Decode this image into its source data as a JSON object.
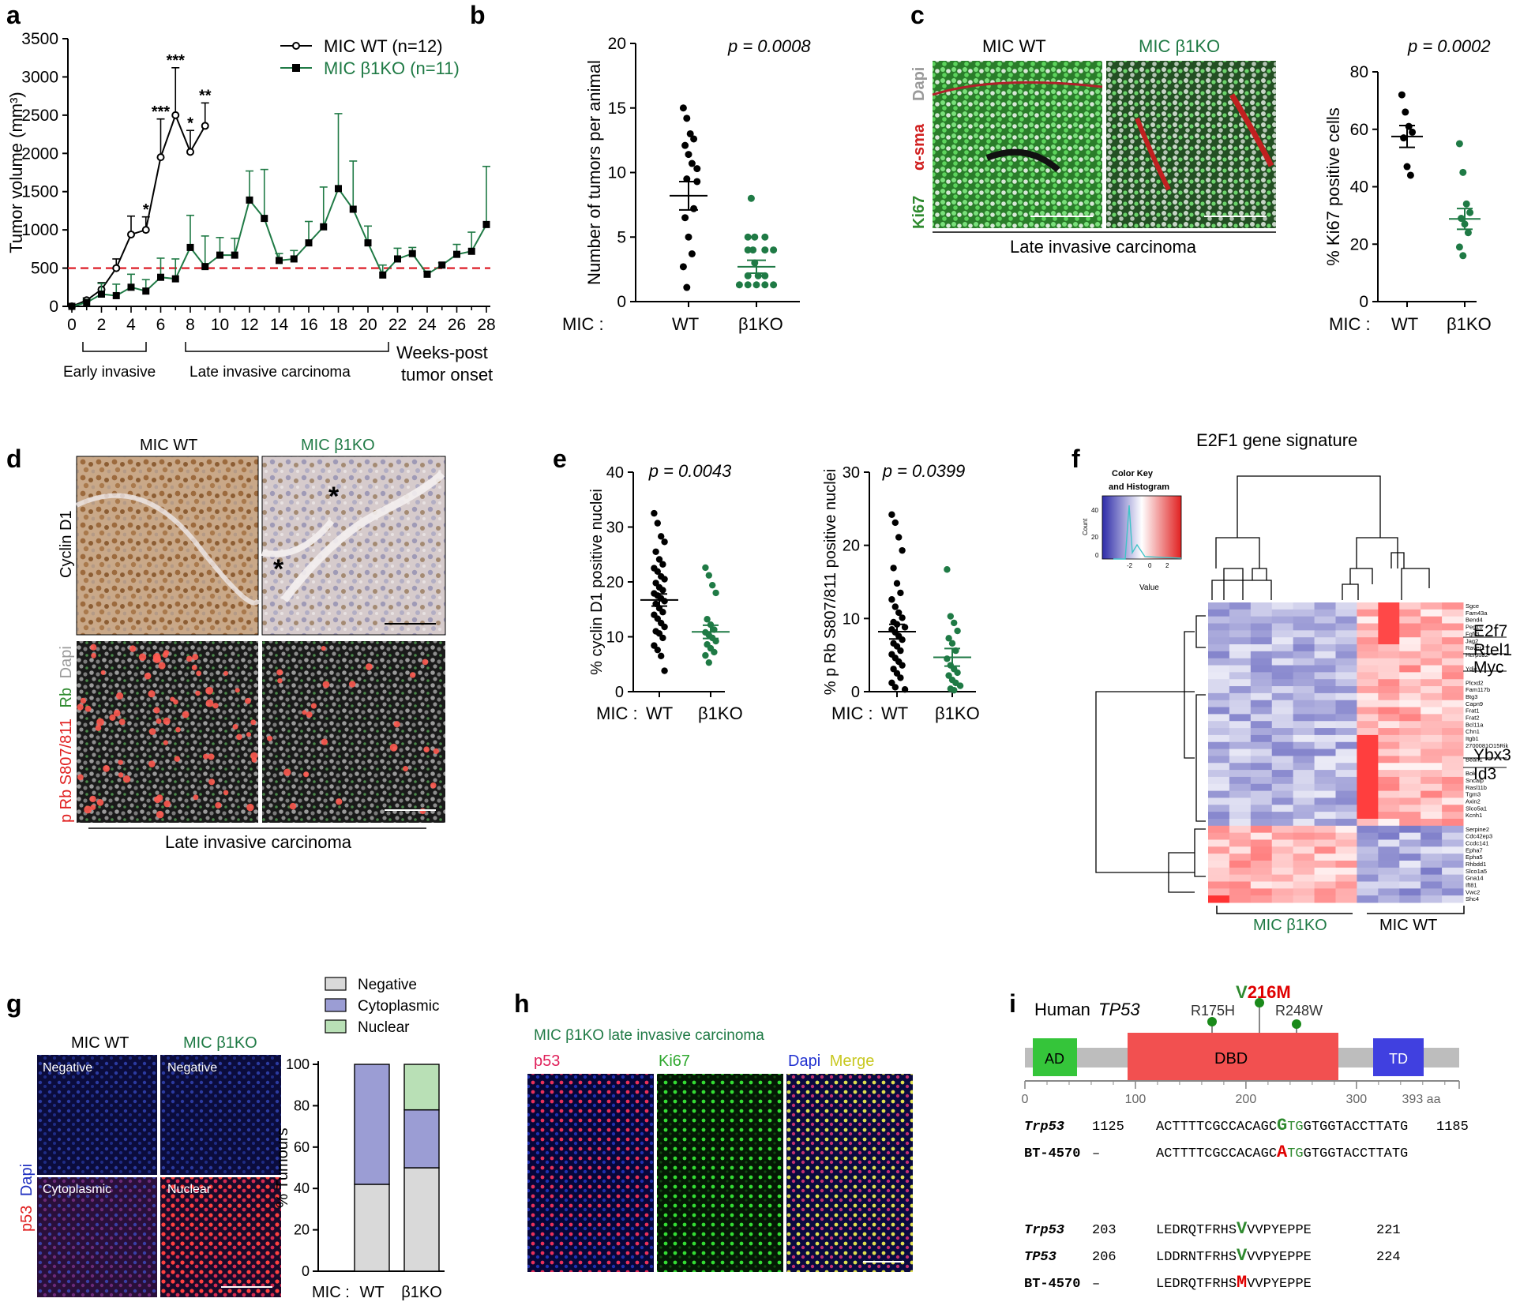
{
  "colors": {
    "wt": "#000000",
    "ko": "#1f7a45",
    "dash": "#e0303a",
    "micro_green": "#2f8a2f",
    "red_text": "#e00000",
    "bar_neg": "#d9d9d9",
    "bar_cyto": "#9b9dd4",
    "bar_nuc": "#b9e0b6",
    "ad": "#35c53a",
    "dbd": "#f25050",
    "td": "#4040e0",
    "tdgrey": "#bdbdbd"
  },
  "icons": {
    "pin": "lollipop-mutation-icon"
  },
  "panels": {
    "a": {
      "label": "a",
      "legend": [
        {
          "text": "MIC WT (n=12)",
          "color": "#000000"
        },
        {
          "text": "MIC β1KO (n=11)",
          "color": "#1f7a45"
        }
      ],
      "region_early": "Early invasive",
      "region_late": "Late invasive carcinoma",
      "weeks_l1": "Weeks-post",
      "weeks_l2": "tumor onset"
    },
    "b": {
      "label": "b",
      "pval": "p = 0.0008",
      "mic": "MIC :",
      "cat_wt": "WT",
      "cat_ko": "β1KO"
    },
    "c": {
      "label": "c",
      "col_wt": "MIC WT",
      "col_ko": "MIC β1KO",
      "stain_dapi": "Dapi",
      "stain_asma": "α-sma",
      "stain_ki67": "Ki67",
      "caption": "Late invasive carcinoma",
      "pval": "p = 0.0002",
      "mic": "MIC :",
      "cat_wt": "WT",
      "cat_ko": "β1KO"
    },
    "d": {
      "label": "d",
      "col_wt": "MIC WT",
      "col_ko": "MIC β1KO",
      "row1": "Cyclin D1",
      "row2_a": "p Rb S807/811",
      "row2_b": "Rb",
      "row2_c": "Dapi",
      "star": "*",
      "caption": "Late invasive carcinoma"
    },
    "e": {
      "label": "e",
      "mic": "MIC :",
      "cat_wt": "WT",
      "cat_ko": "β1KO"
    },
    "f": {
      "label": "f",
      "title": "E2F1 gene signature",
      "key_title_1": "Color Key",
      "key_title_2": "and Histogram",
      "key_ylabel": "Count",
      "key_xlabel": "Value",
      "key_yticks": [
        "0",
        "20",
        "40"
      ],
      "key_xticks": [
        "-2",
        "0",
        "2"
      ],
      "genes": [
        "Sgce",
        "Fam43a",
        "Bend4",
        "Peg10",
        "Fgfr3",
        "Jag2",
        "Raver1",
        "Herpud2",
        "",
        "Ydjc",
        "",
        "Plcxd2",
        "Fam117b",
        "Btg3",
        "Capn9",
        "Frat1",
        "Frat2",
        "Bcl11a",
        "Chn1",
        "Itgb1",
        "2700081O15Rik",
        "",
        "Bean1",
        "",
        "Bok",
        "Sncaip",
        "Rasl11b",
        "Tgm3",
        "Axin2",
        "Slco5a1",
        "Kcnh1",
        "",
        "Serpine2",
        "Cdc42ep3",
        "Ccdc141",
        "Epha7",
        "Epha5",
        "Rhbdd1",
        "Slco1a5",
        "Gna14",
        "Ift81",
        "Vwc2",
        "Shc4"
      ],
      "big_genes": [
        "E2f7",
        "Rtel1",
        "Myc",
        "Ybx3",
        "Id3"
      ],
      "grp_ko": "MIC β1KO",
      "grp_wt": "MIC WT"
    },
    "g": {
      "label": "g",
      "col_wt": "MIC WT",
      "col_ko": "MIC β1KO",
      "tile_tl": "Negative",
      "tile_tr": "Negative",
      "tile_bl": "Cytoplasmic",
      "tile_br": "Nuclear",
      "side_a": "p53",
      "side_b": "Dapi",
      "mic": "MIC :"
    },
    "h": {
      "label": "h",
      "title": "MIC β1KO late invasive carcinoma",
      "lab_p53": "p53",
      "lab_ki67": "Ki67",
      "lab_dapi": "Dapi",
      "lab_merge": "Merge"
    },
    "i": {
      "label": "i",
      "human": "Human",
      "gene": "TP53",
      "mut_pre": "V",
      "mut_post": "216M",
      "mut_r175": "R175H",
      "mut_r248": "R248W",
      "dom_ad": "AD",
      "dom_dbd": "DBD",
      "dom_td": "TD",
      "ticks": [
        "0",
        "100",
        "200",
        "300",
        "393 aa"
      ],
      "seq": {
        "r1_name": "Trp53",
        "r1_start": "1125",
        "r1_pre": "ACTTTTCGCCACAGC",
        "r1_mut": "G",
        "r1_mid": "TG",
        "r1_post": "GTGGTACCTTATG",
        "r1_end": "1185",
        "r2_name": "BT-4570",
        "r2_start": "–",
        "r2_pre": "ACTTTTCGCCACAGC",
        "r2_mut": "A",
        "r2_mid": "TG",
        "r2_post": "GTGGTACCTTATG",
        "r3_name": "Trp53",
        "r3_start": "203",
        "r3_pre": "LEDRQTFRHS",
        "r3_mut": "V",
        "r3_post": "VVPYEPPE",
        "r3_end": "221",
        "r4_name": "TP53",
        "r4_start": "206",
        "r4_pre": "LDDRNTFRHS",
        "r4_mut": "V",
        "r4_post": "VVPYEPPE",
        "r4_end": "224",
        "r5_name": "BT-4570",
        "r5_start": "–",
        "r5_pre": "LEDRQTFRHS",
        "r5_mut": "M",
        "r5_post": "VVPYEPPE"
      }
    }
  },
  "chart_data": [
    {
      "id": "a",
      "type": "line",
      "title": "",
      "xlabel": "Weeks-post tumor onset",
      "ylabel": "Tumor volume (mm³)",
      "xlim": [
        0,
        28
      ],
      "ylim": [
        0,
        3500
      ],
      "xticks": [
        "0",
        "2",
        "4",
        "6",
        "8",
        "10",
        "12",
        "14",
        "16",
        "18",
        "20",
        "22",
        "24",
        "26",
        "28"
      ],
      "yticks": [
        "0",
        "500",
        "1000",
        "1500",
        "2000",
        "2500",
        "3000",
        "3500"
      ],
      "threshold": 500,
      "series": [
        {
          "name": "MIC WT (n=12)",
          "color": "#000000",
          "marker": "circle",
          "x": [
            0,
            1,
            2,
            3,
            4,
            5,
            6,
            7,
            8,
            9
          ],
          "y": [
            0,
            80,
            220,
            500,
            940,
            1000,
            1950,
            2500,
            2020,
            2360
          ],
          "err": [
            0,
            30,
            90,
            120,
            240,
            170,
            500,
            620,
            280,
            300
          ]
        },
        {
          "name": "MIC β1KO (n=11)",
          "color": "#1f7a45",
          "marker": "square",
          "x": [
            0,
            1,
            2,
            3,
            4,
            5,
            6,
            7,
            8,
            9,
            10,
            11,
            12,
            13,
            14,
            15,
            16,
            17,
            18,
            19,
            20,
            21,
            22,
            23,
            24,
            25,
            26,
            27,
            28
          ],
          "y": [
            0,
            50,
            160,
            140,
            250,
            200,
            380,
            360,
            770,
            520,
            670,
            670,
            1390,
            1150,
            600,
            620,
            830,
            1040,
            1540,
            1270,
            830,
            410,
            620,
            690,
            420,
            540,
            680,
            720,
            1070
          ],
          "err": [
            0,
            40,
            140,
            150,
            170,
            150,
            250,
            260,
            420,
            400,
            230,
            220,
            380,
            640,
            90,
            110,
            280,
            520,
            980,
            630,
            220,
            130,
            140,
            80,
            40,
            30,
            130,
            250,
            760
          ]
        }
      ],
      "annotations": [
        {
          "text": "*",
          "x": 5,
          "y": 1200
        },
        {
          "text": "***",
          "x": 6,
          "y": 2480
        },
        {
          "text": "***",
          "x": 7,
          "y": 3150
        },
        {
          "text": "*",
          "x": 8,
          "y": 2330
        },
        {
          "text": "**",
          "x": 9,
          "y": 2690
        }
      ]
    },
    {
      "id": "b",
      "type": "scatter",
      "ylabel": "Number of tumors per animal",
      "ylim": [
        0,
        20
      ],
      "yticks": [
        "0",
        "5",
        "10",
        "15",
        "20"
      ],
      "categories": [
        "WT",
        "β1KO"
      ],
      "pvalue": "p = 0.0008",
      "series": [
        {
          "name": "WT",
          "color": "#000000",
          "mean": 8.2,
          "sem": 1.1,
          "values": [
            15,
            14.2,
            13,
            12.6,
            12.1,
            11.4,
            10.7,
            10.3,
            9.5,
            9.3,
            7.2,
            6.5,
            5,
            3.7,
            2.7,
            1.1
          ]
        },
        {
          "name": "β1KO",
          "color": "#1f7a45",
          "mean": 2.7,
          "sem": 0.5,
          "values": [
            8,
            5,
            5,
            5,
            4,
            4,
            4,
            4,
            3,
            2,
            2,
            2,
            1.3,
            1.3,
            1.3,
            1.3,
            1.3
          ]
        }
      ]
    },
    {
      "id": "c",
      "type": "scatter",
      "ylabel": "% Ki67 positive cells",
      "ylim": [
        0,
        80
      ],
      "yticks": [
        "0",
        "20",
        "40",
        "60",
        "80"
      ],
      "categories": [
        "WT",
        "β1KO"
      ],
      "pvalue": "p = 0.0002",
      "series": [
        {
          "name": "WT",
          "color": "#000000",
          "mean": 57.5,
          "sem": 3.8,
          "values": [
            72,
            66,
            61,
            59,
            57,
            47,
            44
          ]
        },
        {
          "name": "β1KO",
          "color": "#1f7a45",
          "mean": 28.8,
          "sem": 3.6,
          "values": [
            55,
            45,
            34,
            31,
            29,
            27,
            24,
            19,
            16
          ]
        }
      ]
    },
    {
      "id": "e1",
      "type": "scatter",
      "ylabel": "% cyclin D1 positive nuclei",
      "ylim": [
        0,
        40
      ],
      "yticks": [
        "0",
        "10",
        "20",
        "30",
        "40"
      ],
      "categories": [
        "WT",
        "β1KO"
      ],
      "pvalue": "p = 0.0043",
      "series": [
        {
          "name": "WT",
          "color": "#000000",
          "mean": 16.7,
          "sem": 1.1,
          "values": [
            32.5,
            30.7,
            28.3,
            27.3,
            25.5,
            24.1,
            23.2,
            22.5,
            21.9,
            21,
            20.5,
            19.8,
            19,
            18.5,
            17.9,
            17.5,
            17,
            16.5,
            16,
            15.2,
            14.5,
            14,
            13.3,
            12.5,
            11.8,
            11,
            10.6,
            9.8,
            8.4,
            7.6,
            6.5,
            3.8
          ]
        },
        {
          "name": "β1KO",
          "color": "#1f7a45",
          "mean": 10.9,
          "sem": 1.2,
          "values": [
            22.6,
            21.2,
            19.4,
            18,
            13.2,
            12.2,
            11.3,
            10.8,
            10.3,
            9.8,
            9.2,
            8.6,
            7.9,
            7.2,
            6.6,
            5.3
          ]
        }
      ]
    },
    {
      "id": "e2",
      "type": "scatter",
      "ylabel": "% p Rb S807/811 positive nuclei",
      "ylim": [
        0,
        30
      ],
      "yticks": [
        "0",
        "10",
        "20",
        "30"
      ],
      "categories": [
        "WT",
        "β1KO"
      ],
      "pvalue": "p = 0.0399",
      "series": [
        {
          "name": "WT",
          "color": "#000000",
          "mean": 8.2,
          "sem": 1.0,
          "values": [
            24.2,
            23.1,
            21.1,
            19.3,
            16.9,
            14.8,
            13.5,
            12.6,
            11.6,
            10.8,
            10.1,
            9.5,
            9.2,
            8.8,
            8.5,
            8.1,
            7.6,
            7.1,
            6.6,
            6.2,
            5.6,
            5.1,
            4.6,
            4.1,
            3.6,
            3.1,
            2.5,
            1.9,
            1.2,
            0.6,
            0.3
          ]
        },
        {
          "name": "β1KO",
          "color": "#1f7a45",
          "mean": 4.7,
          "sem": 1.2,
          "values": [
            16.7,
            10.3,
            9.4,
            8.3,
            7.3,
            6.6,
            5.6,
            4.5,
            3.6,
            3.1,
            2.6,
            2.2,
            1.6,
            1.2,
            0.8,
            0.4,
            0.2
          ]
        }
      ]
    },
    {
      "id": "g",
      "type": "bar",
      "stacked": true,
      "ylabel": "% Tumours",
      "ylim": [
        0,
        100
      ],
      "yticks": [
        "0",
        "20",
        "40",
        "60",
        "80",
        "100"
      ],
      "categories": [
        "WT",
        "β1KO"
      ],
      "series": [
        {
          "name": "Negative",
          "color": "#d9d9d9",
          "values": [
            42,
            50
          ]
        },
        {
          "name": "Cytoplasmic",
          "color": "#9b9dd4",
          "values": [
            58,
            28
          ]
        },
        {
          "name": "Nuclear",
          "color": "#b9e0b6",
          "values": [
            0,
            22
          ]
        }
      ]
    }
  ]
}
